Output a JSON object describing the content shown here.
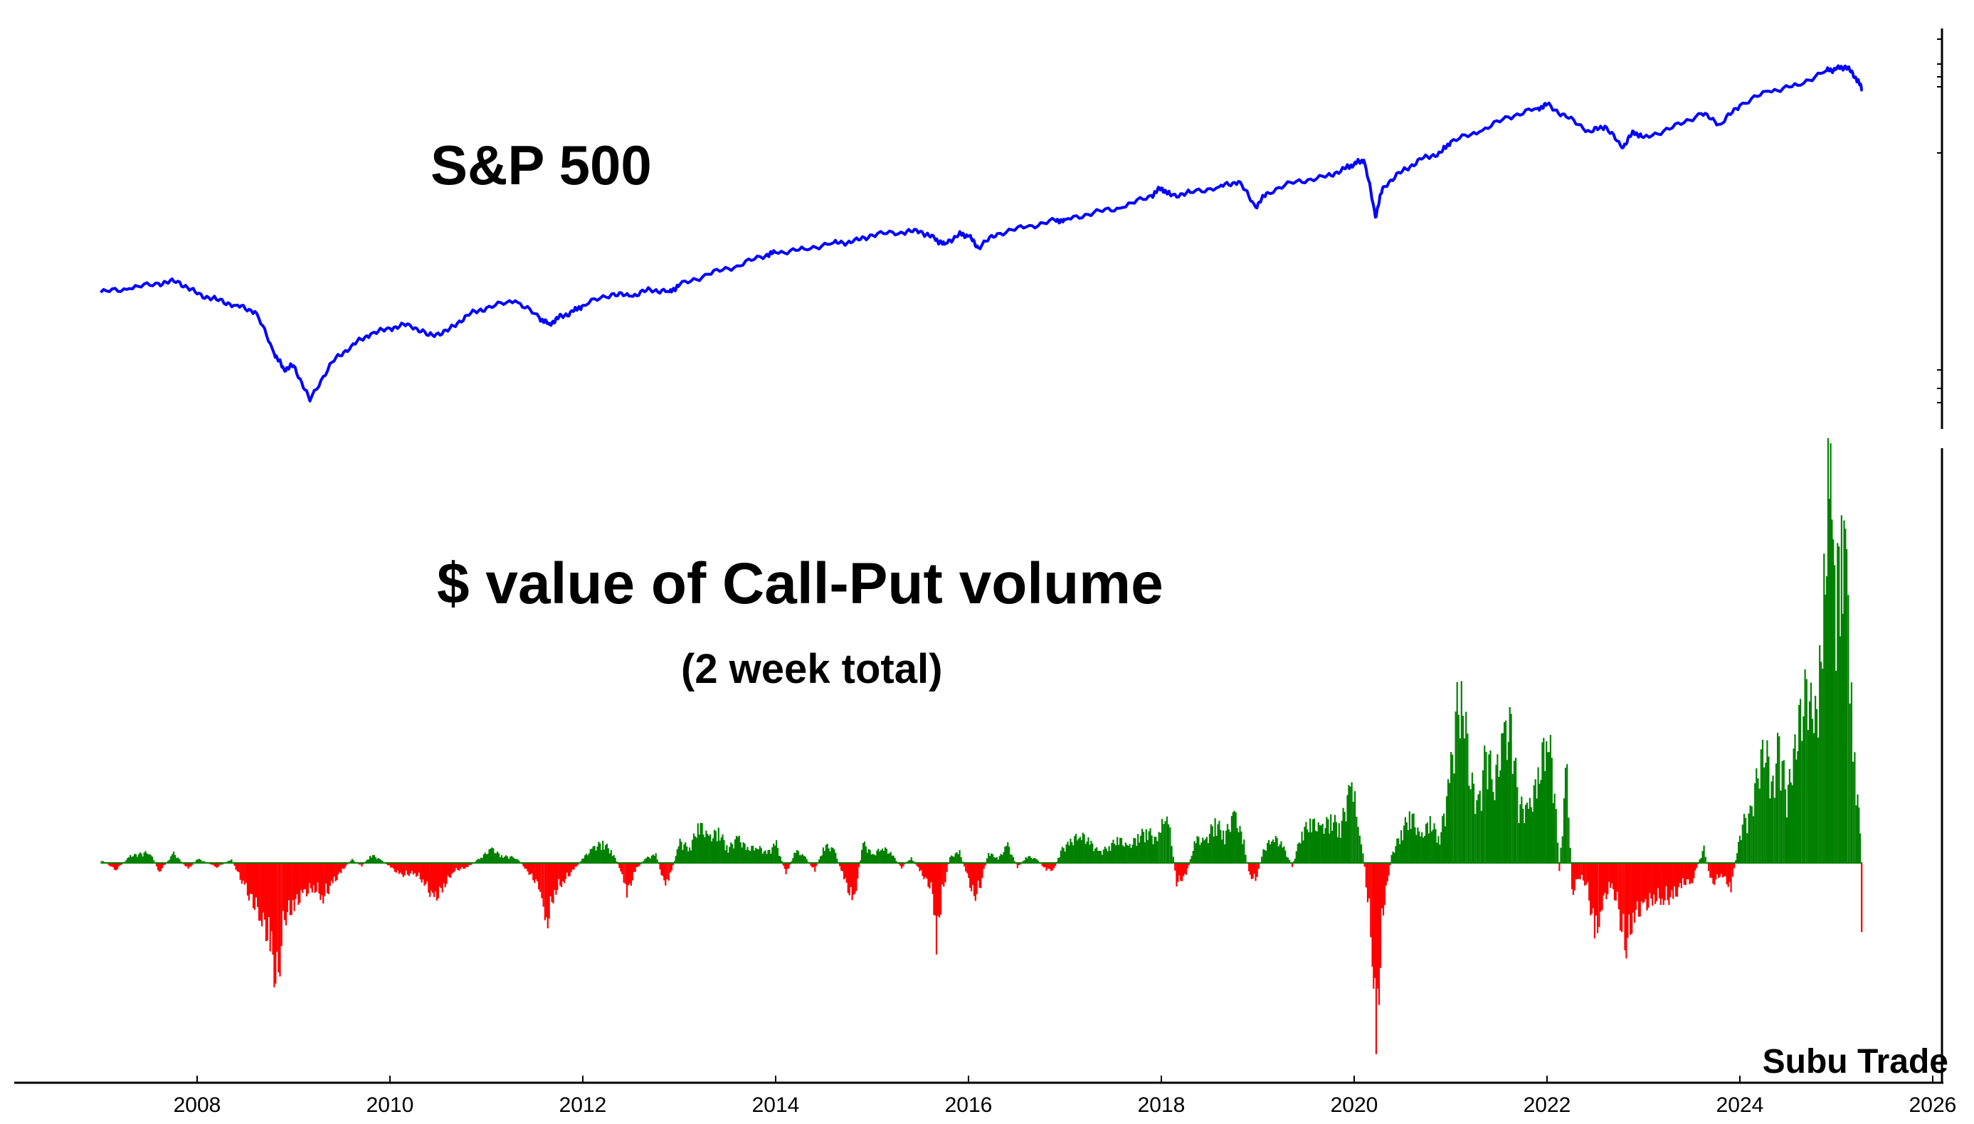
{
  "chart_data": [
    {
      "type": "line",
      "title": "S&P 500",
      "series": [
        {
          "color": "#0000ff",
          "x": [
            2007.0,
            2007.3,
            2007.6,
            2007.8,
            2008.0,
            2008.2,
            2008.4,
            2008.6,
            2008.8,
            2008.9,
            2009.0,
            2009.17,
            2009.4,
            2009.6,
            2009.8,
            2010.0,
            2010.2,
            2010.4,
            2010.6,
            2010.8,
            2011.0,
            2011.3,
            2011.55,
            2011.65,
            2011.75,
            2011.9,
            2012.0,
            2012.3,
            2012.5,
            2012.7,
            2012.9,
            2013.0,
            2013.3,
            2013.6,
            2013.9,
            2014.0,
            2014.3,
            2014.6,
            2014.8,
            2015.0,
            2015.3,
            2015.5,
            2015.65,
            2015.75,
            2015.9,
            2016.0,
            2016.1,
            2016.3,
            2016.6,
            2016.9,
            2017.0,
            2017.3,
            2017.6,
            2017.9,
            2018.0,
            2018.1,
            2018.3,
            2018.6,
            2018.8,
            2018.98,
            2019.1,
            2019.4,
            2019.7,
            2019.9,
            2020.0,
            2020.1,
            2020.22,
            2020.3,
            2020.5,
            2020.7,
            2020.9,
            2021.0,
            2021.3,
            2021.6,
            2021.9,
            2022.0,
            2022.2,
            2022.45,
            2022.6,
            2022.78,
            2022.9,
            2023.0,
            2023.3,
            2023.6,
            2023.8,
            2024.0,
            2024.3,
            2024.6,
            2024.9,
            2025.0,
            2025.1,
            2025.2,
            2025.27
          ],
          "y": [
            1415,
            1450,
            1500,
            1520,
            1400,
            1350,
            1300,
            1250,
            950,
            860,
            880,
            700,
            900,
            1000,
            1080,
            1120,
            1150,
            1070,
            1100,
            1220,
            1280,
            1340,
            1200,
            1150,
            1200,
            1250,
            1300,
            1400,
            1380,
            1440,
            1420,
            1480,
            1590,
            1680,
            1800,
            1830,
            1870,
            1950,
            1960,
            2050,
            2090,
            2100,
            2000,
            1930,
            2060,
            2040,
            1890,
            2070,
            2160,
            2250,
            2260,
            2370,
            2450,
            2650,
            2780,
            2640,
            2700,
            2800,
            2900,
            2450,
            2700,
            2900,
            2980,
            3150,
            3250,
            3330,
            2300,
            2800,
            3100,
            3350,
            3500,
            3750,
            4000,
            4400,
            4650,
            4770,
            4400,
            4000,
            4150,
            3600,
            4000,
            3850,
            4100,
            4500,
            4200,
            4750,
            5200,
            5400,
            5950,
            6000,
            6100,
            5700,
            5250
          ]
        }
      ],
      "xlim": [
        2006.0,
        2026.3
      ],
      "ylabel": "",
      "xlabel": "",
      "ytick_labels": []
    },
    {
      "type": "bar",
      "title": "$ value of Call-Put volume",
      "subtitle": "(2 week total)",
      "positive_color": "#008000",
      "negative_color": "#ff0000",
      "points": [
        [
          2007.0,
          0.4
        ],
        [
          2007.15,
          -1.0
        ],
        [
          2007.3,
          1.0
        ],
        [
          2007.5,
          1.6
        ],
        [
          2007.6,
          -1.3
        ],
        [
          2007.75,
          1.4
        ],
        [
          2007.9,
          -0.9
        ],
        [
          2008.0,
          0.6
        ],
        [
          2008.2,
          -0.6
        ],
        [
          2008.35,
          0.5
        ],
        [
          2008.5,
          -4.0
        ],
        [
          2008.65,
          -7.5
        ],
        [
          2008.75,
          -11.5
        ],
        [
          2008.82,
          -18.0
        ],
        [
          2008.9,
          -8.0
        ],
        [
          2009.0,
          -6.0
        ],
        [
          2009.1,
          -4.5
        ],
        [
          2009.2,
          -3.5
        ],
        [
          2009.3,
          -5.0
        ],
        [
          2009.4,
          -3.0
        ],
        [
          2009.5,
          -1.0
        ],
        [
          2009.6,
          0.5
        ],
        [
          2009.7,
          -0.5
        ],
        [
          2009.8,
          1.2
        ],
        [
          2009.9,
          0.4
        ],
        [
          2010.0,
          -0.6
        ],
        [
          2010.1,
          -1.8
        ],
        [
          2010.25,
          -1.5
        ],
        [
          2010.35,
          -2.8
        ],
        [
          2010.45,
          -5.4
        ],
        [
          2010.55,
          -3.4
        ],
        [
          2010.65,
          -1.2
        ],
        [
          2010.8,
          -0.6
        ],
        [
          2010.95,
          1.0
        ],
        [
          2011.05,
          2.0
        ],
        [
          2011.15,
          1.0
        ],
        [
          2011.3,
          0.8
        ],
        [
          2011.42,
          -1.2
        ],
        [
          2011.55,
          -3.6
        ],
        [
          2011.6,
          -9.8
        ],
        [
          2011.7,
          -4.2
        ],
        [
          2011.8,
          -2.5
        ],
        [
          2011.9,
          -1.0
        ],
        [
          2012.0,
          0.8
        ],
        [
          2012.1,
          2.1
        ],
        [
          2012.2,
          3.0
        ],
        [
          2012.3,
          1.5
        ],
        [
          2012.4,
          -1.5
        ],
        [
          2012.45,
          -4.4
        ],
        [
          2012.55,
          -0.8
        ],
        [
          2012.65,
          0.7
        ],
        [
          2012.75,
          1.2
        ],
        [
          2012.85,
          -3.6
        ],
        [
          2012.9,
          -1.6
        ],
        [
          2013.0,
          3.0
        ],
        [
          2013.1,
          2.2
        ],
        [
          2013.2,
          5.6
        ],
        [
          2013.3,
          3.5
        ],
        [
          2013.4,
          4.6
        ],
        [
          2013.5,
          2.1
        ],
        [
          2013.6,
          3.6
        ],
        [
          2013.7,
          2.0
        ],
        [
          2013.8,
          2.4
        ],
        [
          2013.9,
          1.4
        ],
        [
          2014.0,
          2.8
        ],
        [
          2014.1,
          -1.7
        ],
        [
          2014.2,
          1.8
        ],
        [
          2014.3,
          0.8
        ],
        [
          2014.4,
          -1.2
        ],
        [
          2014.5,
          2.6
        ],
        [
          2014.6,
          1.8
        ],
        [
          2014.7,
          -2.1
        ],
        [
          2014.8,
          -6.0
        ],
        [
          2014.9,
          2.9
        ],
        [
          2015.0,
          1.1
        ],
        [
          2015.1,
          2.3
        ],
        [
          2015.2,
          1.2
        ],
        [
          2015.3,
          -0.7
        ],
        [
          2015.4,
          0.8
        ],
        [
          2015.5,
          -1.4
        ],
        [
          2015.62,
          -4.0
        ],
        [
          2015.66,
          -12.0
        ],
        [
          2015.72,
          -4.5
        ],
        [
          2015.8,
          0.8
        ],
        [
          2015.9,
          1.6
        ],
        [
          2015.98,
          -1.8
        ],
        [
          2016.05,
          -5.1
        ],
        [
          2016.12,
          -3.1
        ],
        [
          2016.2,
          1.5
        ],
        [
          2016.3,
          0.6
        ],
        [
          2016.4,
          2.6
        ],
        [
          2016.5,
          -0.7
        ],
        [
          2016.6,
          1.0
        ],
        [
          2016.7,
          0.5
        ],
        [
          2016.8,
          -1.0
        ],
        [
          2016.88,
          -1.0
        ],
        [
          2016.95,
          1.8
        ],
        [
          2017.05,
          3.0
        ],
        [
          2017.15,
          4.2
        ],
        [
          2017.25,
          3.0
        ],
        [
          2017.35,
          1.5
        ],
        [
          2017.45,
          2.4
        ],
        [
          2017.55,
          3.5
        ],
        [
          2017.65,
          2.2
        ],
        [
          2017.75,
          3.8
        ],
        [
          2017.85,
          4.8
        ],
        [
          2017.95,
          3.0
        ],
        [
          2018.0,
          5.5
        ],
        [
          2018.05,
          8.1
        ],
        [
          2018.1,
          2.6
        ],
        [
          2018.15,
          -2.9
        ],
        [
          2018.25,
          -1.8
        ],
        [
          2018.35,
          3.5
        ],
        [
          2018.45,
          3.0
        ],
        [
          2018.55,
          6.1
        ],
        [
          2018.65,
          4.0
        ],
        [
          2018.75,
          6.9
        ],
        [
          2018.85,
          3.0
        ],
        [
          2018.9,
          -1.6
        ],
        [
          2018.97,
          -2.6
        ],
        [
          2019.05,
          1.7
        ],
        [
          2019.15,
          3.8
        ],
        [
          2019.25,
          2.5
        ],
        [
          2019.35,
          -0.5
        ],
        [
          2019.45,
          4.5
        ],
        [
          2019.55,
          5.9
        ],
        [
          2019.65,
          4.8
        ],
        [
          2019.75,
          6.4
        ],
        [
          2019.85,
          5.3
        ],
        [
          2019.95,
          10.5
        ],
        [
          2020.0,
          9.0
        ],
        [
          2020.05,
          4.8
        ],
        [
          2020.1,
          -0.6
        ],
        [
          2020.18,
          -12.8
        ],
        [
          2020.22,
          -29.1
        ],
        [
          2020.28,
          -8.0
        ],
        [
          2020.38,
          1.0
        ],
        [
          2020.48,
          4.5
        ],
        [
          2020.58,
          7.2
        ],
        [
          2020.68,
          3.5
        ],
        [
          2020.78,
          6.0
        ],
        [
          2020.88,
          3.5
        ],
        [
          2020.98,
          11.5
        ],
        [
          2021.06,
          22.4
        ],
        [
          2021.12,
          24.0
        ],
        [
          2021.2,
          12.0
        ],
        [
          2021.28,
          8.5
        ],
        [
          2021.36,
          16.0
        ],
        [
          2021.45,
          12.0
        ],
        [
          2021.55,
          18.0
        ],
        [
          2021.62,
          19.7
        ],
        [
          2021.7,
          8.5
        ],
        [
          2021.8,
          7.4
        ],
        [
          2021.9,
          12.0
        ],
        [
          2022.0,
          19.6
        ],
        [
          2022.07,
          10.5
        ],
        [
          2022.12,
          -1.0
        ],
        [
          2022.2,
          15.1
        ],
        [
          2022.25,
          -4.6
        ],
        [
          2022.32,
          -2.0
        ],
        [
          2022.4,
          -3.0
        ],
        [
          2022.5,
          -11.1
        ],
        [
          2022.55,
          -6.4
        ],
        [
          2022.65,
          -3.2
        ],
        [
          2022.72,
          -5.6
        ],
        [
          2022.8,
          -12.5
        ],
        [
          2022.9,
          -7.4
        ],
        [
          2023.0,
          -6.4
        ],
        [
          2023.1,
          -5.1
        ],
        [
          2023.2,
          -5.2
        ],
        [
          2023.3,
          -5.2
        ],
        [
          2023.4,
          -2.9
        ],
        [
          2023.5,
          -2.6
        ],
        [
          2023.62,
          2.3
        ],
        [
          2023.7,
          -3.2
        ],
        [
          2023.8,
          -1.5
        ],
        [
          2023.9,
          -3.7
        ],
        [
          2023.95,
          0.5
        ],
        [
          2024.02,
          5.8
        ],
        [
          2024.1,
          7.1
        ],
        [
          2024.18,
          13.0
        ],
        [
          2024.26,
          17.4
        ],
        [
          2024.32,
          10.2
        ],
        [
          2024.4,
          17.5
        ],
        [
          2024.48,
          9.5
        ],
        [
          2024.55,
          15.0
        ],
        [
          2024.62,
          21.1
        ],
        [
          2024.7,
          26.0
        ],
        [
          2024.76,
          18.5
        ],
        [
          2024.82,
          27.0
        ],
        [
          2024.88,
          44.3
        ],
        [
          2024.92,
          58.5
        ],
        [
          2024.96,
          40.0
        ],
        [
          2025.02,
          46.0
        ],
        [
          2025.06,
          47.0
        ],
        [
          2025.1,
          40.0
        ],
        [
          2025.15,
          24.0
        ],
        [
          2025.2,
          12.5
        ],
        [
          2025.24,
          4.0
        ],
        [
          2025.27,
          -21.2
        ]
      ],
      "xlim": [
        2006.0,
        2026.3
      ],
      "ylim": [
        -34,
        60
      ],
      "xtick_labels": [
        "2008",
        "2010",
        "2012",
        "2014",
        "2016",
        "2018",
        "2020",
        "2022",
        "2024",
        "2026"
      ],
      "xticks": [
        2008,
        2010,
        2012,
        2014,
        2016,
        2018,
        2020,
        2022,
        2024,
        2026
      ]
    }
  ],
  "watermark": "Subu Trade"
}
